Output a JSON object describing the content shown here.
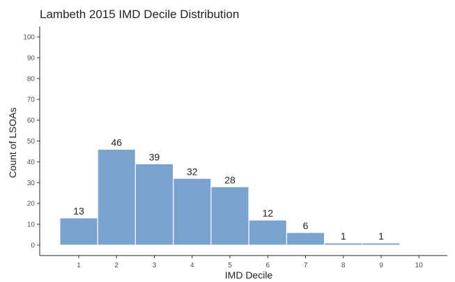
{
  "chart_data": {
    "type": "bar",
    "title": "Lambeth 2015 IMD Decile Distribution",
    "xlabel": "IMD Decile",
    "ylabel": "Count of LSOAs",
    "categories": [
      "1",
      "2",
      "3",
      "4",
      "5",
      "6",
      "7",
      "8",
      "9",
      "10"
    ],
    "values": [
      13,
      46,
      39,
      32,
      28,
      12,
      6,
      1,
      1,
      0
    ],
    "data_labels": [
      "13",
      "46",
      "39",
      "32",
      "28",
      "12",
      "6",
      "1",
      "1",
      ""
    ],
    "yticks": [
      0,
      10,
      20,
      30,
      40,
      50,
      60,
      70,
      80,
      90,
      100
    ],
    "ylim": [
      0,
      100
    ],
    "grid": false,
    "bar_color": "#7aa3d0",
    "bar_edge_color": "#ffffff"
  }
}
